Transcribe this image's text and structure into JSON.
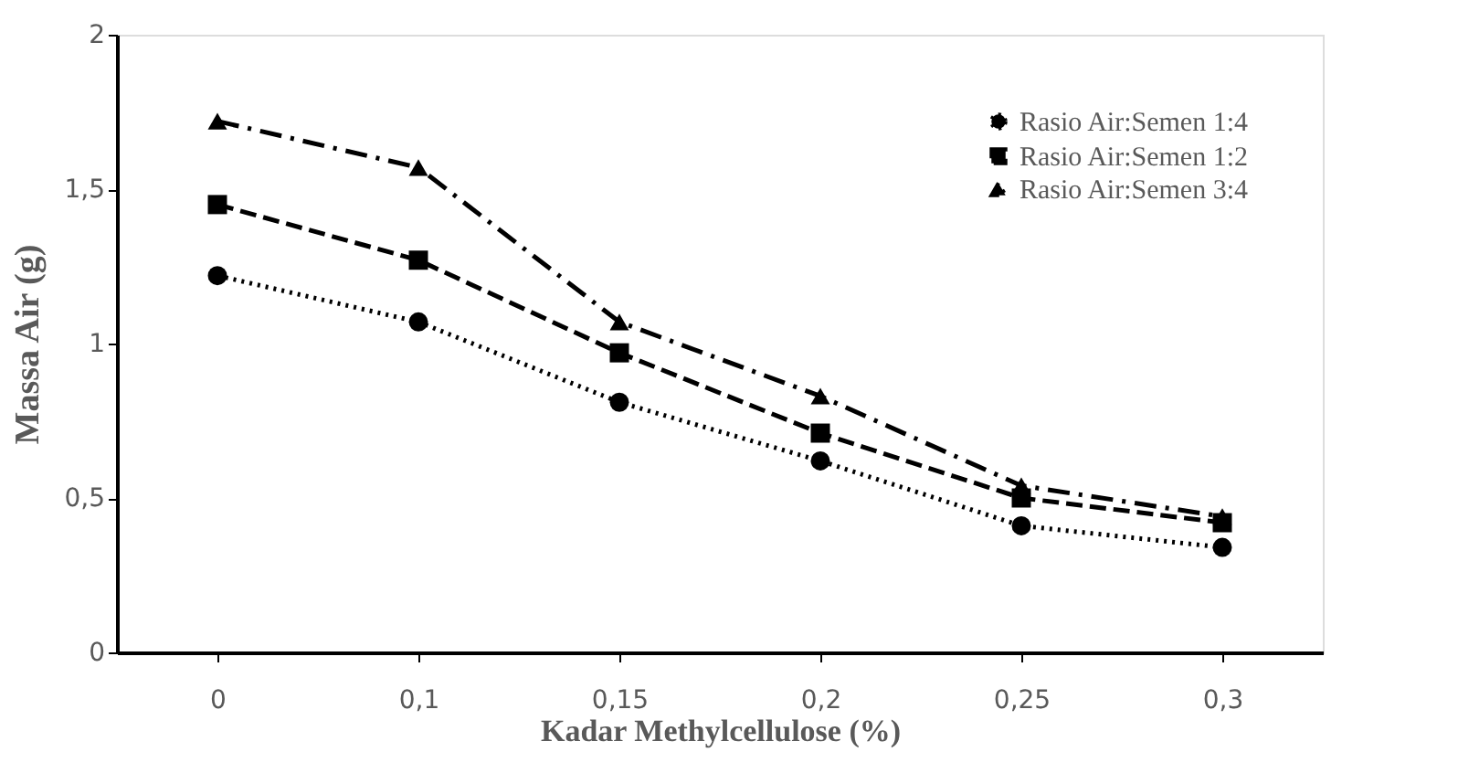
{
  "chart_data": {
    "type": "line",
    "xlabel": "Kadar  Methylcellulose (%)",
    "ylabel": "Massa  Air (g)",
    "categories": [
      "0",
      "0,1",
      "0,15",
      "0,2",
      "0,25",
      "0,3"
    ],
    "series": [
      {
        "name": "Rasio Air:Semen 1:4",
        "color": "#000000",
        "marker": "circle",
        "line_style": "dotted",
        "values": [
          1.22,
          1.07,
          0.81,
          0.62,
          0.41,
          0.34
        ]
      },
      {
        "name": "Rasio Air:Semen 1:2",
        "color": "#000000",
        "marker": "square",
        "line_style": "dashed",
        "values": [
          1.45,
          1.27,
          0.97,
          0.71,
          0.5,
          0.42
        ]
      },
      {
        "name": "Rasio Air:Semen 3:4",
        "color": "#000000",
        "marker": "triangle",
        "line_style": "dashed",
        "values": [
          1.72,
          1.57,
          1.07,
          0.83,
          0.54,
          0.44
        ]
      }
    ],
    "ylim": [
      0,
      2
    ],
    "yticks": [
      0,
      {
        "value": 0.5,
        "label": "0,5"
      },
      1,
      {
        "value": 1.5,
        "label": "1,5"
      },
      2
    ],
    "grid": false,
    "legend": "top right"
  }
}
